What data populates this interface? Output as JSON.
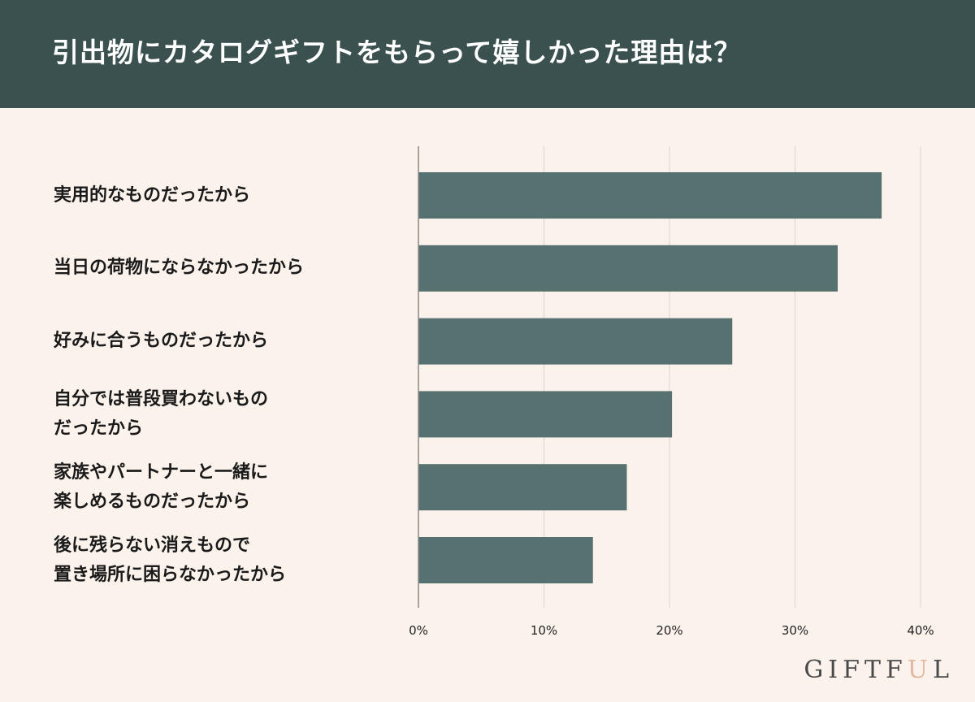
{
  "header": {
    "title": "引出物にカタログギフトをもらって嬉しかった理由は？"
  },
  "chart_data": {
    "type": "bar",
    "orientation": "horizontal",
    "title": "引出物にカタログギフトをもらって嬉しかった理由は？",
    "categories": [
      [
        "実用的なものだったから"
      ],
      [
        "当日の荷物にならなかったから"
      ],
      [
        "好みに合うものだったから"
      ],
      [
        "自分では普段買わないもの",
        "だったから"
      ],
      [
        "家族やパートナーと一緒に",
        "楽しめるものだったから"
      ],
      [
        "後に残らない消えもので",
        "置き場所に困らなかったから"
      ]
    ],
    "values": [
      36.9,
      33.4,
      25.0,
      20.2,
      16.6,
      13.9
    ],
    "unit": "%",
    "xlim": [
      0,
      40
    ],
    "ticks": [
      "0%",
      "10%",
      "20%",
      "30%",
      "40%"
    ],
    "grid": true,
    "bar_color": "#56716f",
    "grid_color": "#d9d4d0"
  },
  "brand": {
    "logo_start": "GIFTF",
    "logo_accent": "U",
    "logo_end": "L"
  }
}
